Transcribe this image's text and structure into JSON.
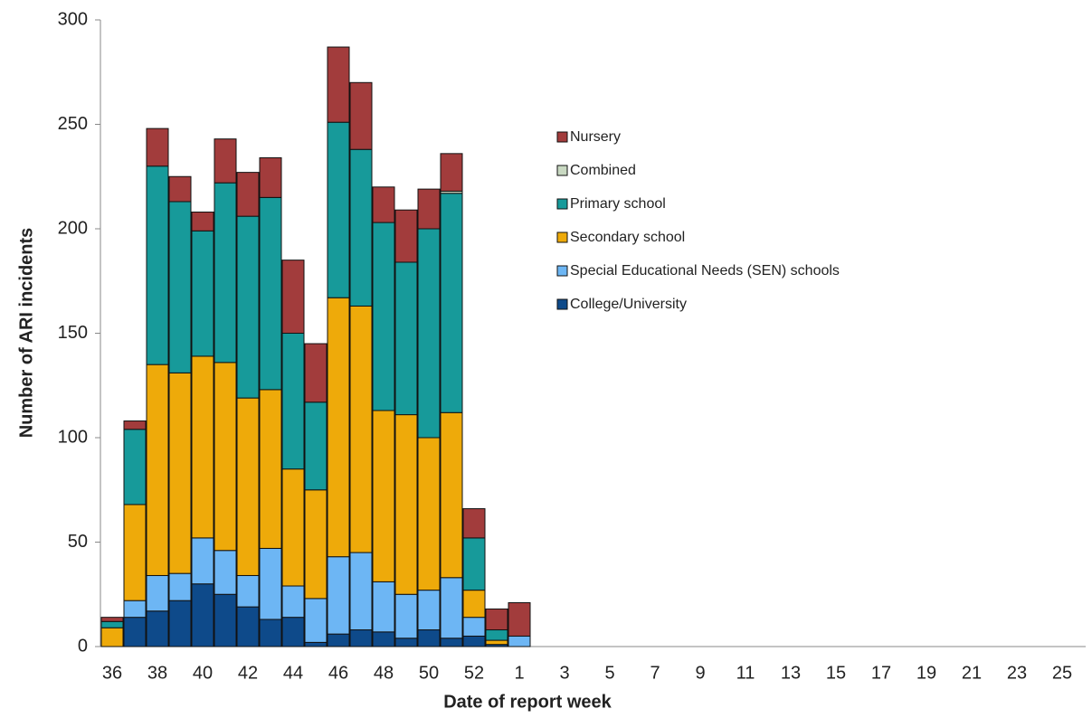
{
  "chart_data": {
    "type": "stacked_bar",
    "y_label": "Number of ARI incidents",
    "x_label": "Date of report week",
    "categories": [
      "36",
      null,
      "38",
      null,
      "40",
      null,
      "42",
      null,
      "44",
      null,
      "46",
      null,
      "48",
      null,
      "50",
      null,
      "52",
      null,
      "1",
      null,
      "3",
      null,
      "5",
      null,
      "7",
      null,
      "9",
      null,
      "11",
      null,
      "13",
      null,
      "15",
      null,
      "17",
      null,
      "19",
      null,
      "21",
      null,
      "23",
      null,
      "25"
    ],
    "ylim": [
      0,
      300
    ],
    "yticks": [
      0,
      50,
      100,
      150,
      200,
      250,
      300
    ],
    "series": [
      {
        "name": "College/University",
        "color": "#0e4a8a",
        "values": [
          0,
          14,
          17,
          22,
          30,
          25,
          19,
          13,
          14,
          2,
          6,
          8,
          7,
          4,
          8,
          4,
          5,
          1,
          0,
          null,
          null,
          null,
          null,
          null,
          null,
          null,
          null,
          null,
          null,
          null,
          null,
          null,
          null,
          null,
          null,
          null,
          null,
          null,
          null,
          null,
          null,
          null,
          null
        ]
      },
      {
        "name": "Special Educational Needs (SEN) schools",
        "color": "#6db6f4",
        "values": [
          0,
          8,
          17,
          13,
          22,
          21,
          15,
          34,
          15,
          21,
          37,
          37,
          24,
          21,
          19,
          29,
          9,
          0,
          5,
          null,
          null,
          null,
          null,
          null,
          null,
          null,
          null,
          null,
          null,
          null,
          null,
          null,
          null,
          null,
          null,
          null,
          null,
          null,
          null,
          null,
          null,
          null,
          null
        ]
      },
      {
        "name": "Secondary school",
        "color": "#eeaa0a",
        "values": [
          9,
          46,
          101,
          96,
          87,
          90,
          85,
          76,
          56,
          52,
          124,
          118,
          82,
          86,
          73,
          79,
          13,
          2,
          0,
          null,
          null,
          null,
          null,
          null,
          null,
          null,
          null,
          null,
          null,
          null,
          null,
          null,
          null,
          null,
          null,
          null,
          null,
          null,
          null,
          null,
          null,
          null,
          null
        ]
      },
      {
        "name": "Primary school",
        "color": "#179a9a",
        "values": [
          3,
          36,
          95,
          82,
          60,
          86,
          87,
          92,
          65,
          42,
          84,
          75,
          90,
          73,
          100,
          105,
          25,
          5,
          0,
          null,
          null,
          null,
          null,
          null,
          null,
          null,
          null,
          null,
          null,
          null,
          null,
          null,
          null,
          null,
          null,
          null,
          null,
          null,
          null,
          null,
          null,
          null,
          null
        ]
      },
      {
        "name": "Combined",
        "color": "#c9d9c2",
        "values": [
          0,
          0,
          0,
          0,
          0,
          0,
          0,
          0,
          0,
          0,
          0,
          0,
          0,
          0,
          0,
          1,
          0,
          0,
          0,
          null,
          null,
          null,
          null,
          null,
          null,
          null,
          null,
          null,
          null,
          null,
          null,
          null,
          null,
          null,
          null,
          null,
          null,
          null,
          null,
          null,
          null,
          null,
          null
        ]
      },
      {
        "name": "Nursery",
        "color": "#a23c3c",
        "values": [
          2,
          4,
          18,
          12,
          9,
          21,
          21,
          19,
          35,
          28,
          36,
          32,
          17,
          25,
          19,
          18,
          14,
          10,
          16,
          null,
          null,
          null,
          null,
          null,
          null,
          null,
          null,
          null,
          null,
          null,
          null,
          null,
          null,
          null,
          null,
          null,
          null,
          null,
          null,
          null,
          null,
          null,
          null
        ]
      }
    ]
  }
}
